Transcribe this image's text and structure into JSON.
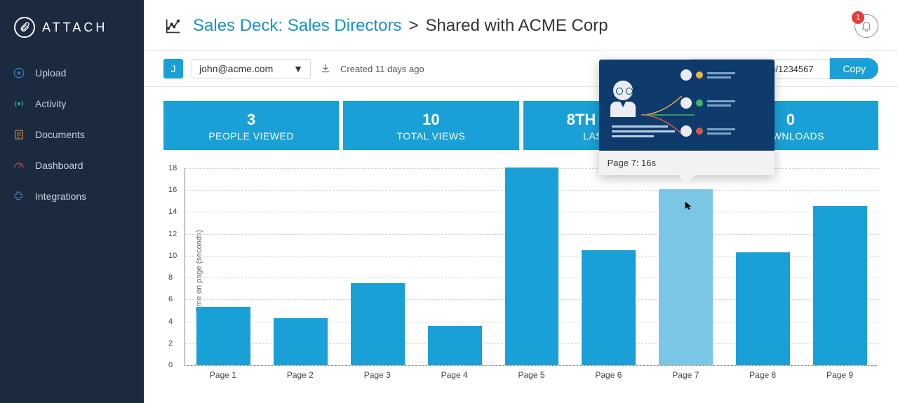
{
  "brand": "ATTACH",
  "sidebar": {
    "items": [
      {
        "label": "Upload",
        "icon_color": "#2f8fd6"
      },
      {
        "label": "Activity",
        "icon_color": "#2fb4a0"
      },
      {
        "label": "Documents",
        "icon_color": "#d68a3a"
      },
      {
        "label": "Dashboard",
        "icon_color": "#d65a4a"
      },
      {
        "label": "Integrations",
        "icon_color": "#4a7aa8"
      }
    ]
  },
  "header": {
    "doc_title": "Sales Deck: Sales Directors",
    "shared_with": "Shared with ACME Corp",
    "notifications": "1"
  },
  "subheader": {
    "user_initial": "J",
    "user_email": "john@acme.com",
    "created_text": "Created 11 days ago",
    "share_url": "https://view.attach.io/1234567",
    "copy_label": "Copy"
  },
  "stats": [
    {
      "value": "3",
      "label": "PEOPLE VIEWED"
    },
    {
      "value": "10",
      "label": "TOTAL VIEWS"
    },
    {
      "value": "8TH NOV 16",
      "label": "LAST VIEW"
    },
    {
      "value": "0",
      "label": "DOWNLOADS"
    }
  ],
  "chart": {
    "type": "bar",
    "y_axis_label": "Time on page (seconds)",
    "y_max": 18,
    "y_tick_step": 2,
    "categories": [
      "Page 1",
      "Page 2",
      "Page 3",
      "Page 4",
      "Page 5",
      "Page 6",
      "Page 7",
      "Page 8",
      "Page 9"
    ],
    "values": [
      5.3,
      4.3,
      7.5,
      3.6,
      18.0,
      10.5,
      16.0,
      10.3,
      14.5
    ],
    "bar_color": "#19a0d6",
    "bar_hover_color": "#7cc6e5",
    "grid_color": "#d0d4d9",
    "hovered_index": 6,
    "tooltip": {
      "caption": "Page 7: 16s",
      "slide_bg": "#0f3a6c",
      "dot_colors": [
        "#f0b43a",
        "#3fb36a",
        "#d65a4a"
      ]
    }
  }
}
